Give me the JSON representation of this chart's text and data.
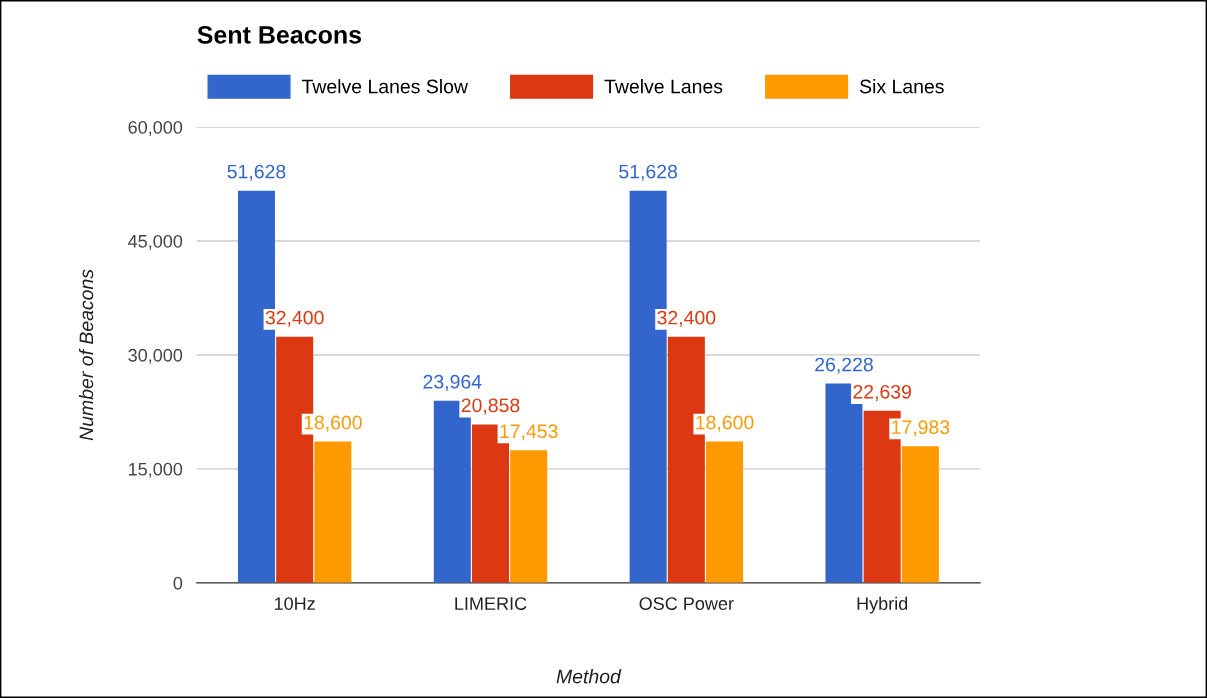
{
  "chart_data": {
    "type": "bar",
    "title": "Sent Beacons",
    "xlabel": "Method",
    "ylabel": "Number of Beacons",
    "categories": [
      "10Hz",
      "LIMERIC",
      "OSC Power",
      "Hybrid"
    ],
    "series": [
      {
        "name": "Twelve Lanes Slow",
        "color": "#3366cc",
        "values": [
          51628,
          23964,
          51628,
          26228
        ],
        "value_labels": [
          "51,628",
          "23,964",
          "51,628",
          "26,228"
        ]
      },
      {
        "name": "Twelve Lanes",
        "color": "#dc3912",
        "values": [
          32400,
          20858,
          32400,
          22639
        ],
        "value_labels": [
          "32,400",
          "20,858",
          "32,400",
          "22,639"
        ]
      },
      {
        "name": "Six Lanes",
        "color": "#ff9900",
        "values": [
          18600,
          17453,
          18600,
          17983
        ],
        "value_labels": [
          "18,600",
          "17,453",
          "18,600",
          "17,983"
        ]
      }
    ],
    "ylim": [
      0,
      60000
    ],
    "yticks": [
      {
        "value": 0,
        "label": "0"
      },
      {
        "value": 15000,
        "label": "15,000"
      },
      {
        "value": 30000,
        "label": "30,000"
      },
      {
        "value": 45000,
        "label": "45,000"
      },
      {
        "value": 60000,
        "label": "60,000"
      }
    ],
    "grid": "y",
    "legend": "top"
  }
}
